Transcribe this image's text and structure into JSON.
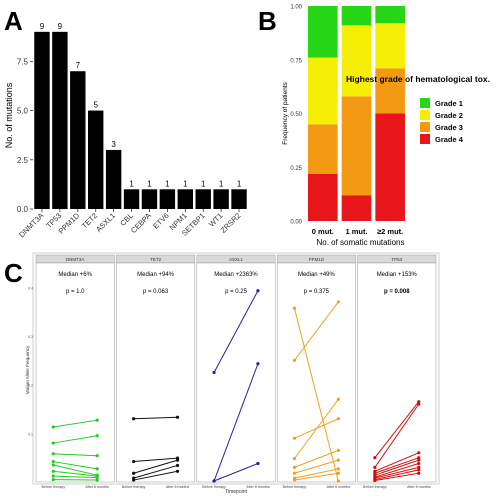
{
  "panel_labels": {
    "a": "A",
    "b": "B",
    "c": "C"
  },
  "chart_data": [
    {
      "type": "bar",
      "panel": "A",
      "ylabel": "No. of mutations",
      "categories": [
        "DNMT3A",
        "TP53",
        "PPM1D",
        "TET2",
        "ASXL1",
        "CBL",
        "CEBPA",
        "ETV6",
        "NPM1",
        "SETBP1",
        "WT1",
        "ZRSR2"
      ],
      "values": [
        9,
        9,
        7,
        5,
        3,
        1,
        1,
        1,
        1,
        1,
        1,
        1
      ],
      "ylim": [
        0,
        9.5
      ],
      "yticks": [
        "0.0",
        "2.5",
        "5.0",
        "7.5"
      ],
      "ytick_values": [
        0,
        2.5,
        5,
        7.5
      ],
      "bar_color": "#000000",
      "data_labels": true
    },
    {
      "type": "bar",
      "stacked": true,
      "panel": "B",
      "xlabel": "No. of somatic mutations",
      "ylabel": "Frequency of patients",
      "categories": [
        "0 mut.",
        "1 mut.",
        "≥2 mut."
      ],
      "ylim": [
        0,
        1
      ],
      "yticks": [
        "0.00",
        "0.25",
        "0.50",
        "0.75",
        "1.00"
      ],
      "ytick_values": [
        0,
        0.25,
        0.5,
        0.75,
        1
      ],
      "series": [
        {
          "name": "Grade 4",
          "color": "#e8161b",
          "values": [
            0.22,
            0.12,
            0.5
          ]
        },
        {
          "name": "Grade 3",
          "color": "#f39a12",
          "values": [
            0.23,
            0.46,
            0.21
          ]
        },
        {
          "name": "Grade 2",
          "color": "#f5ef06",
          "values": [
            0.31,
            0.33,
            0.21
          ]
        },
        {
          "name": "Grade 1",
          "color": "#27d616",
          "values": [
            0.24,
            0.09,
            0.08
          ]
        }
      ],
      "legend": {
        "title": "Highest grade of hematological tox.",
        "placement": "right",
        "entries": [
          {
            "label": "Grade 1",
            "color": "#27d616"
          },
          {
            "label": "Grade 2",
            "color": "#f5ef06"
          },
          {
            "label": "Grade 3",
            "color": "#f39a12"
          },
          {
            "label": "Grade 4",
            "color": "#e8161b"
          }
        ]
      }
    },
    {
      "type": "line",
      "panel": "C",
      "xlabel": "Timepoint",
      "ylabel": "Variant Allele Frequency",
      "x_categories": [
        "Before therapy",
        "After 6 months"
      ],
      "ylim": [
        0,
        0.45
      ],
      "yticks": [
        "0.1",
        "0.2",
        "0.3",
        "0.4"
      ],
      "ytick_values": [
        0.1,
        0.2,
        0.3,
        0.4
      ],
      "facets": [
        {
          "name": "DNMT3A",
          "median": "Median +6%",
          "p": "p = 1.0",
          "bold_p": false,
          "color": "#22cc22",
          "pairs": [
            [
              0.113,
              0.127
            ],
            [
              0.08,
              0.095
            ],
            [
              0.058,
              0.054
            ],
            [
              0.042,
              0.027
            ],
            [
              0.035,
              0.014
            ],
            [
              0.022,
              0.012
            ],
            [
              0.012,
              0.009
            ],
            [
              0.005,
              0.004
            ]
          ]
        },
        {
          "name": "TET2",
          "median": "Median +94%",
          "p": "p = 0.063",
          "bold_p": false,
          "color": "#111111",
          "pairs": [
            [
              0.13,
              0.133
            ],
            [
              0.042,
              0.049
            ],
            [
              0.018,
              0.045
            ],
            [
              0.008,
              0.034
            ],
            [
              0.004,
              0.022
            ]
          ]
        },
        {
          "name": "ASXL1",
          "median": "Median +2363%",
          "p": "p = 0.25",
          "bold_p": false,
          "color": "#2222aa",
          "pairs": [
            [
              0.225,
              0.393
            ],
            [
              0.002,
              0.243
            ],
            [
              0.002,
              0.038
            ]
          ]
        },
        {
          "name": "PPM1D",
          "median": "Median +49%",
          "p": "p = 0.375",
          "bold_p": false,
          "color": "#f0a020",
          "pairs": [
            [
              0.357,
              0.002
            ],
            [
              0.25,
              0.37
            ],
            [
              0.09,
              0.13
            ],
            [
              0.048,
              0.17
            ],
            [
              0.03,
              0.065
            ],
            [
              0.018,
              0.045
            ],
            [
              0.008,
              0.027
            ],
            [
              0.004,
              0.018
            ]
          ]
        },
        {
          "name": "TP53",
          "median": "Median +153%",
          "p": "p = 0.008",
          "bold_p": true,
          "color": "#cc1111",
          "pairs": [
            [
              0.05,
              0.165
            ],
            [
              0.03,
              0.16
            ],
            [
              0.022,
              0.06
            ],
            [
              0.018,
              0.05
            ],
            [
              0.014,
              0.045
            ],
            [
              0.01,
              0.038
            ],
            [
              0.008,
              0.03
            ],
            [
              0.005,
              0.025
            ],
            [
              0.003,
              0.018
            ]
          ]
        }
      ]
    }
  ]
}
